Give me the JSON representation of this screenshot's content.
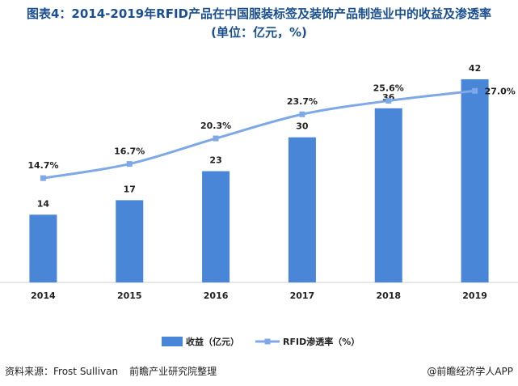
{
  "header": {
    "title_line1": "图表4：2014-2019年RFID产品在中国服装标签及装饰产品制造业中的收益及渗透率",
    "title_line2": "(单位：亿元，%)"
  },
  "chart_data": {
    "type": "bar+line",
    "categories": [
      "2014",
      "2015",
      "2016",
      "2017",
      "2018",
      "2019"
    ],
    "series": [
      {
        "name": "收益（亿元）",
        "kind": "bar",
        "values": [
          14,
          17,
          23,
          30,
          36,
          42
        ],
        "labels": [
          "14",
          "17",
          "23",
          "30",
          "36",
          "42"
        ],
        "color": "#4a86d8"
      },
      {
        "name": "RFID渗透率（%）",
        "kind": "line",
        "values": [
          14.7,
          16.7,
          20.3,
          23.7,
          25.6,
          27.0
        ],
        "labels": [
          "14.7%",
          "16.7%",
          "20.3%",
          "23.7%",
          "25.6%",
          "27.0%"
        ],
        "color": "#7fa9e6"
      }
    ],
    "bar_axis_range": [
      0,
      44
    ],
    "line_axis_range": [
      0,
      30
    ],
    "grid": false,
    "legend_position": "bottom-center"
  },
  "footer": {
    "source_label": "资料来源：Frost Sullivan",
    "source_org": "前瞻产业研究院整理",
    "credit": "@前瞻经济学人APP"
  }
}
